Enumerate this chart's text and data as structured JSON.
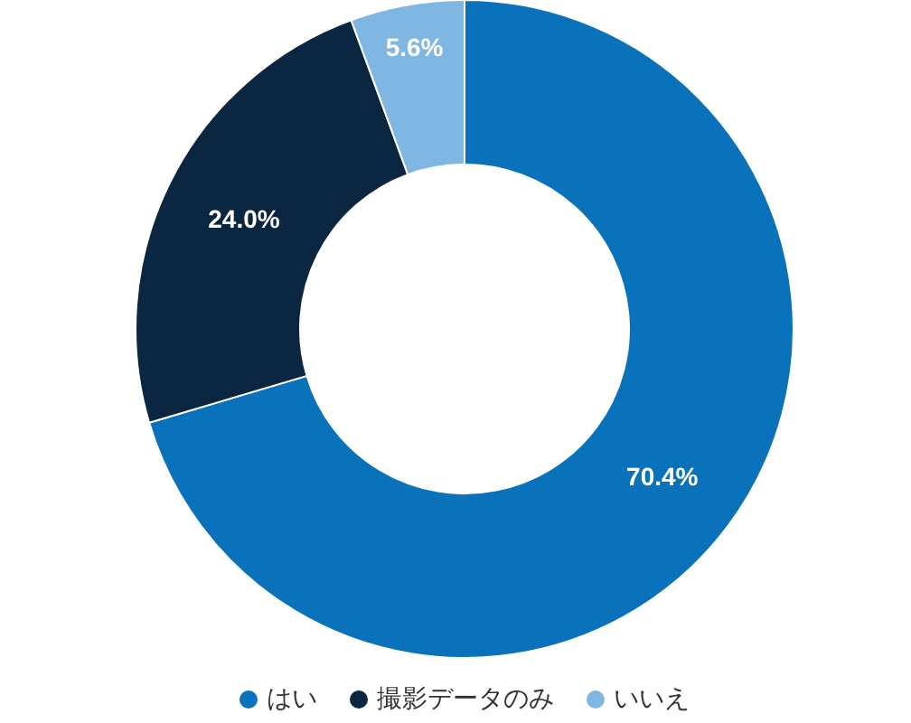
{
  "chart_data": {
    "type": "donut",
    "categories": [
      "はい",
      "撮影データのみ",
      "いいえ"
    ],
    "values": [
      70.4,
      24.0,
      5.6
    ],
    "colors": [
      "#0a72ba",
      "#0b2640",
      "#80b7e2"
    ],
    "value_labels": [
      "70.4%",
      "24.0%",
      "5.6%"
    ],
    "legend": "bottom"
  }
}
